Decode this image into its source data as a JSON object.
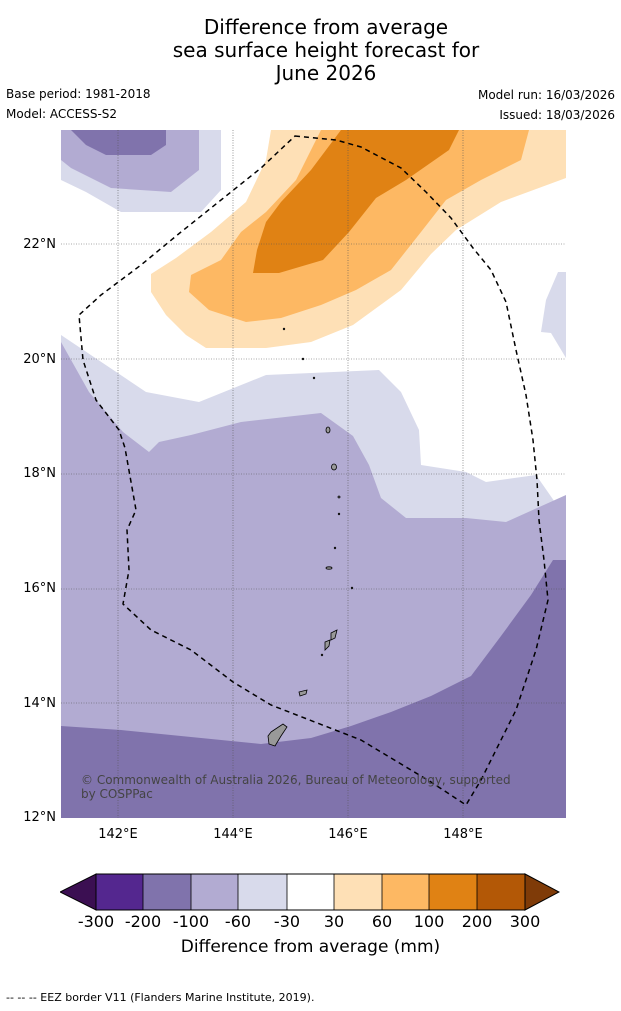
{
  "title": {
    "line1": "Difference from average",
    "line2": "sea surface height forecast for",
    "line3": "June 2026"
  },
  "meta": {
    "base_period": "Base period: 1981-2018",
    "model": "Model: ACCESS-S2",
    "model_run": "Model run: 16/03/2026",
    "issued": "Issued: 18/03/2026"
  },
  "map": {
    "latitude_labels": [
      "22°N",
      "20°N",
      "18°N",
      "16°N",
      "14°N",
      "12°N"
    ],
    "longitude_labels": [
      "142°E",
      "144°E",
      "146°E",
      "148°E"
    ],
    "extent": {
      "lon_min": 141,
      "lon_max": 149.8,
      "lat_min": 12,
      "lat_max": 24
    },
    "copyright": "© Commonwealth of Australia 2026, Bureau of Meteorology, supported by COSPPac"
  },
  "colorbar": {
    "ticks": [
      "-300",
      "-200",
      "-100",
      "-60",
      "-30",
      "30",
      "60",
      "100",
      "200",
      "300"
    ],
    "colors": [
      "#3b0f52",
      "#54278f",
      "#8073ac",
      "#b2abd2",
      "#d8daeb",
      "#ffffff",
      "#fee0b6",
      "#fdb863",
      "#e08214",
      "#b35806",
      "#7f3b08"
    ],
    "label": "Difference from average (mm)"
  },
  "footnote": "--  --  -- EEZ border V11 (Flanders Marine Institute, 2019)."
}
